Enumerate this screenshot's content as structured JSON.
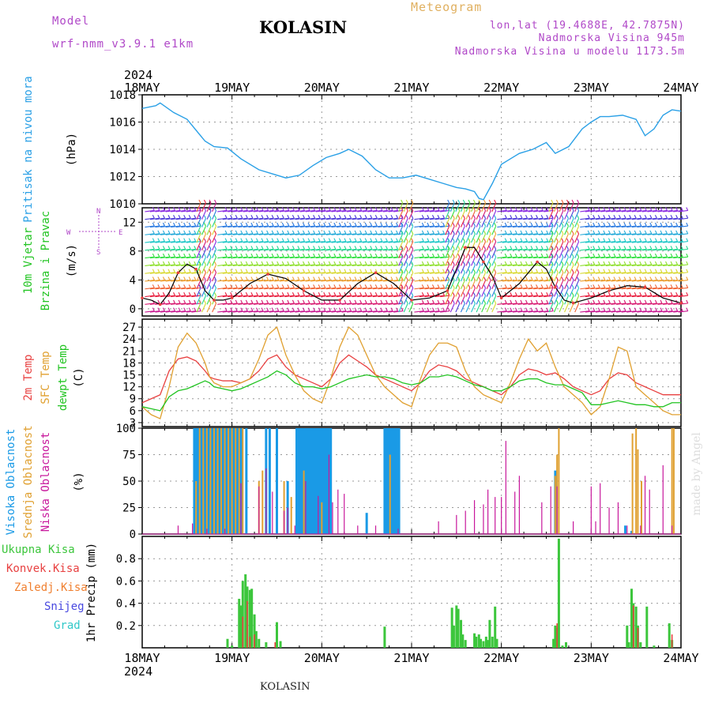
{
  "header": {
    "model_label": "Model",
    "model_name": "wrf-nmm_v3.9.1 e1km",
    "station": "KOLASIN",
    "meteogram_label": "Meteogram",
    "lonlat": "lon,lat (19.4688E, 42.7875N)",
    "altitude": "Nadmorska Visina 945m",
    "model_altitude": "Nadmorska Visina u modelu 1173.5m",
    "credit": "made by Angel",
    "footer_station": "KOLASIN"
  },
  "colors": {
    "pressure": "#2aa0e6",
    "temp2m": "#e84040",
    "sfc_temp": "#e0a030",
    "dewpt": "#22c422",
    "high_cloud": "#1a9ae6",
    "mid_cloud": "#e0a030",
    "low_cloud": "#c8189c",
    "total_precip": "#3cc63c",
    "conv_precip": "#e84040",
    "freezing": "#f08030",
    "snow": "#4848e0",
    "hail": "#30c8c8",
    "header_purple": "#b048c8",
    "header_gold": "#e0b060"
  },
  "chart_data": [
    {
      "type": "line",
      "panel": "pressure",
      "ylabel": [
        "Pritisak na nivou mora",
        "(hPa)"
      ],
      "ylim": [
        1010,
        1018
      ],
      "yticks": [
        1010,
        1012,
        1014,
        1016,
        1018
      ],
      "x_unit": "days since 18MAY 00UTC",
      "x": [
        0,
        0.15,
        0.2,
        0.35,
        0.5,
        0.7,
        0.8,
        0.95,
        1.1,
        1.3,
        1.45,
        1.6,
        1.75,
        1.9,
        2.05,
        2.2,
        2.3,
        2.45,
        2.6,
        2.75,
        2.9,
        3.05,
        3.2,
        3.35,
        3.5,
        3.6,
        3.7,
        3.75,
        3.8,
        3.9,
        4.0,
        4.1,
        4.2,
        4.35,
        4.5,
        4.6,
        4.75,
        4.9,
        5.0,
        5.1,
        5.2,
        5.35,
        5.5,
        5.6,
        5.7,
        5.8,
        5.9,
        6.0
      ],
      "values": [
        1017.0,
        1017.2,
        1017.4,
        1016.7,
        1016.2,
        1014.6,
        1014.2,
        1014.1,
        1013.3,
        1012.5,
        1012.2,
        1011.9,
        1012.1,
        1012.8,
        1013.4,
        1013.7,
        1014.0,
        1013.5,
        1012.5,
        1011.9,
        1011.9,
        1012.1,
        1011.8,
        1011.5,
        1011.2,
        1011.1,
        1010.9,
        1010.4,
        1010.3,
        1011.5,
        1012.9,
        1013.3,
        1013.7,
        1014.0,
        1014.5,
        1013.7,
        1014.2,
        1015.5,
        1016.0,
        1016.4,
        1016.4,
        1016.5,
        1016.2,
        1015.0,
        1015.5,
        1016.5,
        1016.9,
        1016.8
      ]
    },
    {
      "type": "line",
      "panel": "wind",
      "ylabel": [
        "10m Vjetar",
        "Brzina i Pravac",
        "(m/s)"
      ],
      "legend": [
        "N",
        "W",
        "E",
        "S"
      ],
      "ylim": [
        -1,
        14
      ],
      "yticks": [
        0,
        4,
        8,
        12
      ],
      "x": [
        0,
        0.1,
        0.2,
        0.3,
        0.4,
        0.5,
        0.6,
        0.7,
        0.8,
        0.9,
        1.0,
        1.2,
        1.4,
        1.6,
        1.8,
        2.0,
        2.2,
        2.4,
        2.6,
        2.8,
        3.0,
        3.2,
        3.4,
        3.5,
        3.6,
        3.7,
        3.8,
        3.9,
        4.0,
        4.2,
        4.4,
        4.5,
        4.6,
        4.7,
        4.8,
        5.0,
        5.2,
        5.4,
        5.6,
        5.8,
        6.0
      ],
      "values": [
        1.5,
        1.2,
        0.6,
        2.2,
        5.0,
        6.2,
        5.5,
        2.5,
        1.2,
        1.2,
        1.5,
        3.5,
        4.8,
        4.2,
        2.5,
        1.2,
        1.2,
        3.5,
        5.0,
        3.5,
        1.2,
        1.5,
        2.5,
        5.5,
        8.5,
        8.5,
        6.5,
        4.5,
        1.5,
        3.5,
        6.5,
        5.5,
        3.0,
        1.2,
        0.8,
        1.5,
        2.5,
        3.2,
        3.0,
        1.5,
        0.8
      ],
      "barb_rows": [
        0,
        1,
        2,
        3,
        4,
        5,
        6,
        7,
        8,
        9,
        10,
        11,
        12,
        13
      ],
      "barb_colors": [
        "#8a2be2",
        "#4b3ad8",
        "#2a7ae0",
        "#20a8d8",
        "#20c8c8",
        "#20d890",
        "#30e040",
        "#90e030",
        "#d8d830",
        "#f0a030",
        "#f06030",
        "#e82040",
        "#d81870",
        "#c81890"
      ]
    },
    {
      "type": "line",
      "panel": "temperature",
      "ylabel": [
        "2m Temp",
        "SFC Temp",
        "dewpt Temp",
        "(C)"
      ],
      "ylim": [
        2,
        29
      ],
      "yticks": [
        3,
        6,
        9,
        12,
        15,
        18,
        21,
        24,
        27
      ],
      "x": [
        0,
        0.1,
        0.2,
        0.3,
        0.4,
        0.5,
        0.6,
        0.7,
        0.75,
        0.8,
        0.9,
        1.0,
        1.1,
        1.2,
        1.3,
        1.4,
        1.5,
        1.6,
        1.7,
        1.8,
        1.9,
        2.0,
        2.1,
        2.2,
        2.3,
        2.4,
        2.5,
        2.6,
        2.7,
        2.8,
        2.9,
        3.0,
        3.1,
        3.2,
        3.3,
        3.4,
        3.5,
        3.6,
        3.7,
        3.8,
        3.9,
        4.0,
        4.1,
        4.2,
        4.3,
        4.4,
        4.5,
        4.6,
        4.7,
        4.8,
        4.9,
        5.0,
        5.1,
        5.2,
        5.3,
        5.4,
        5.5,
        5.6,
        5.7,
        5.8,
        5.9,
        6.0
      ],
      "series": [
        {
          "name": "2m Temp",
          "values": [
            8,
            9,
            10,
            16,
            19,
            19.5,
            18.5,
            16,
            14.5,
            14,
            13.5,
            13.5,
            13,
            14,
            16,
            19,
            20,
            17,
            15,
            14,
            13,
            12,
            14,
            18,
            20,
            18.5,
            17,
            15,
            14,
            13,
            12,
            11,
            13,
            16,
            17.5,
            17,
            16,
            14,
            13,
            12,
            11,
            10,
            12,
            15,
            16.5,
            16,
            15,
            15.5,
            14,
            12,
            11,
            10,
            11,
            14,
            15.5,
            15,
            13,
            12,
            11,
            10,
            10,
            10
          ]
        },
        {
          "name": "SFC Temp",
          "values": [
            7,
            5,
            4,
            12,
            22,
            25.5,
            23,
            18,
            14.5,
            13,
            12,
            12,
            13,
            14,
            19,
            25,
            27,
            20,
            15,
            11,
            9,
            8,
            14,
            22,
            27,
            25,
            20,
            15,
            12,
            10,
            8,
            7,
            14,
            20,
            23,
            23,
            22,
            16,
            12,
            10,
            9,
            8,
            13,
            19,
            24,
            21,
            23,
            17,
            12,
            10,
            8,
            5,
            7,
            14,
            22,
            21,
            12,
            10,
            8,
            6,
            5,
            5
          ]
        },
        {
          "name": "dewpt Temp",
          "values": [
            7,
            6.5,
            6,
            9.5,
            11,
            11.5,
            12.5,
            13.5,
            13,
            12,
            11.5,
            11,
            11.5,
            12.5,
            13.5,
            14.5,
            16,
            15,
            13,
            12,
            12,
            11.5,
            12,
            13,
            14,
            14.5,
            15,
            14.5,
            14.5,
            14,
            13,
            12.5,
            13,
            14.5,
            14.5,
            15,
            14.5,
            13.5,
            12.5,
            12,
            11,
            11,
            12,
            13.5,
            14,
            14,
            13,
            12.5,
            12.5,
            11.5,
            10.5,
            7.5,
            7.5,
            8,
            8.5,
            8,
            7.5,
            7.5,
            7,
            7,
            8,
            8
          ]
        }
      ]
    },
    {
      "type": "bar",
      "panel": "cloud",
      "ylabel": [
        "Visoka Oblacnost",
        "Srednja Oblacnost",
        "Niska Oblacnost",
        "(%)"
      ],
      "ylim": [
        0,
        100
      ],
      "yticks": [
        0,
        25,
        50,
        75,
        100
      ],
      "series": [
        {
          "name": "Visoka Oblacnost",
          "x": [
            0.58,
            0.6,
            0.62,
            0.64,
            0.66,
            0.68,
            0.7,
            0.72,
            0.74,
            0.76,
            0.78,
            0.82,
            0.86,
            0.9,
            0.94,
            0.98,
            1.02,
            1.06,
            1.1,
            1.16,
            1.38,
            1.42,
            1.5,
            1.62,
            1.72,
            1.74,
            1.76,
            1.78,
            1.8,
            1.82,
            1.84,
            1.86,
            1.88,
            1.9,
            1.92,
            1.94,
            1.96,
            1.98,
            2.0,
            2.02,
            2.04,
            2.06,
            2.08,
            2.1,
            2.5,
            2.7,
            2.72,
            2.74,
            2.76,
            2.78,
            2.8,
            2.82,
            2.84,
            2.86,
            4.6,
            5.38,
            5.45
          ],
          "values": [
            100,
            100,
            100,
            100,
            100,
            100,
            100,
            100,
            100,
            100,
            100,
            100,
            100,
            100,
            100,
            100,
            100,
            100,
            100,
            100,
            100,
            100,
            100,
            50,
            100,
            100,
            100,
            100,
            100,
            100,
            100,
            100,
            100,
            100,
            100,
            100,
            100,
            100,
            100,
            100,
            100,
            100,
            100,
            100,
            20,
            100,
            100,
            100,
            100,
            100,
            100,
            100,
            100,
            100,
            60,
            8,
            3
          ]
        },
        {
          "name": "Srednja Oblacnost",
          "x": [
            0.6,
            0.64,
            0.68,
            0.72,
            0.76,
            0.8,
            0.84,
            0.88,
            0.92,
            0.96,
            1.0,
            1.04,
            1.08,
            1.12,
            1.3,
            1.34,
            1.58,
            1.66,
            1.8,
            2.0,
            2.76,
            4.6,
            4.62,
            4.64,
            5.46,
            5.5,
            5.52,
            5.56,
            5.9,
            5.92
          ],
          "values": [
            50,
            100,
            100,
            100,
            100,
            100,
            100,
            100,
            100,
            100,
            100,
            100,
            100,
            100,
            50,
            60,
            50,
            35,
            60,
            30,
            75,
            55,
            75,
            100,
            95,
            100,
            80,
            50,
            100,
            100
          ]
        },
        {
          "name": "Niska Oblacnost",
          "x": [
            0.4,
            0.56,
            0.72,
            0.92,
            1.1,
            1.3,
            1.38,
            1.45,
            1.58,
            1.62,
            1.7,
            1.82,
            1.96,
            2.08,
            2.12,
            2.18,
            2.25,
            2.4,
            2.6,
            2.85,
            3.3,
            3.5,
            3.6,
            3.7,
            3.8,
            3.85,
            3.93,
            4.0,
            4.05,
            4.15,
            4.2,
            4.45,
            4.55,
            4.62,
            4.8,
            5.0,
            5.05,
            5.1,
            5.2,
            5.3,
            5.4,
            5.55,
            5.6,
            5.65,
            5.8,
            5.9
          ],
          "values": [
            8,
            10,
            5,
            5,
            48,
            45,
            62,
            40,
            22,
            25,
            8,
            50,
            36,
            75,
            30,
            42,
            38,
            8,
            8,
            5,
            12,
            18,
            22,
            32,
            28,
            42,
            35,
            35,
            88,
            40,
            55,
            30,
            45,
            45,
            12,
            45,
            12,
            48,
            25,
            30,
            8,
            8,
            55,
            42,
            65,
            8
          ]
        }
      ]
    },
    {
      "type": "bar",
      "panel": "precip",
      "ylabel": [
        "1hr Precip",
        "(mm)"
      ],
      "legend": [
        "Ukupna Kisa",
        "Konvek.Kisa",
        "Zaledj.Kisa",
        "Snijeg",
        "Grad"
      ],
      "ylim": [
        0,
        1.0
      ],
      "yticks": [
        0.2,
        0.4,
        0.6,
        0.8
      ],
      "series": [
        {
          "name": "Ukupna Kisa",
          "x": [
            0.95,
            1.0,
            1.08,
            1.1,
            1.12,
            1.15,
            1.17,
            1.2,
            1.22,
            1.25,
            1.27,
            1.3,
            1.38,
            1.5,
            1.54,
            2.7,
            3.45,
            3.47,
            3.5,
            3.52,
            3.55,
            3.57,
            3.6,
            3.7,
            3.72,
            3.75,
            3.77,
            3.8,
            3.83,
            3.85,
            3.87,
            3.9,
            3.93,
            3.95,
            4.58,
            4.6,
            4.62,
            4.64,
            4.68,
            4.72,
            5.4,
            5.42,
            5.45,
            5.47,
            5.5,
            5.52,
            5.55,
            5.62,
            5.7,
            5.87,
            5.9
          ],
          "values": [
            0.08,
            0.02,
            0.44,
            0.38,
            0.6,
            0.66,
            0.55,
            0.52,
            0.53,
            0.3,
            0.15,
            0.08,
            0.05,
            0.23,
            0.06,
            0.19,
            0.36,
            0.2,
            0.38,
            0.35,
            0.25,
            0.12,
            0.07,
            0.13,
            0.1,
            0.12,
            0.08,
            0.06,
            0.1,
            0.07,
            0.25,
            0.1,
            0.37,
            0.08,
            0.08,
            0.2,
            0.18,
            0.98,
            0.02,
            0.05,
            0.2,
            0.05,
            0.53,
            0.4,
            0.37,
            0.2,
            0.05,
            0.37,
            0.02,
            0.22,
            0.07
          ]
        },
        {
          "name": "Konvek.Kisa",
          "x": [
            1.12,
            1.17,
            1.2,
            1.25,
            1.48,
            4.62,
            5.47,
            5.52,
            5.9
          ],
          "values": [
            0.28,
            0.42,
            0.1,
            0.12,
            0.05,
            0.22,
            0.38,
            0.18,
            0.12
          ]
        }
      ]
    }
  ],
  "axes": {
    "year_label": "2024",
    "date_labels": [
      "18MAY",
      "19MAY",
      "20MAY",
      "21MAY",
      "22MAY",
      "23MAY",
      "24MAY"
    ]
  }
}
